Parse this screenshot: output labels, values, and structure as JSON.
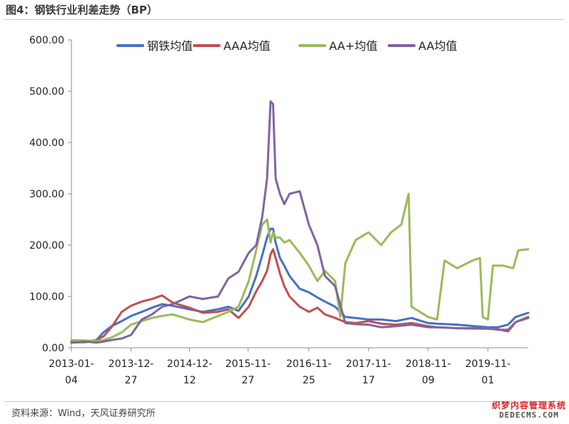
{
  "header": {
    "title": "图4：钢铁行业利差走势（BP）"
  },
  "footer": {
    "source": "资料来源：Wind，天风证券研究所"
  },
  "watermark": {
    "line1": "织梦内容管理系统",
    "line2": "DEDECMS.COM"
  },
  "chart_data": {
    "type": "line",
    "title": "",
    "xlabel": "",
    "ylabel": "",
    "ylim": [
      0,
      600
    ],
    "yticks": [
      "0.00",
      "100.00",
      "200.00",
      "300.00",
      "400.00",
      "500.00",
      "600.00"
    ],
    "xtick_labels": [
      [
        "2013-01-",
        "04"
      ],
      [
        "2013-12-",
        "27"
      ],
      [
        "2014-12-",
        "12"
      ],
      [
        "2015-11-",
        "27"
      ],
      [
        "2016-11-",
        "25"
      ],
      [
        "2017-11-",
        "17"
      ],
      [
        "2018-11-",
        "09"
      ],
      [
        "2019-11-",
        "01"
      ]
    ],
    "xtick_dates": [
      "2013-01-04",
      "2013-12-27",
      "2014-12-12",
      "2015-11-27",
      "2016-11-25",
      "2017-11-17",
      "2018-11-09",
      "2019-11-01"
    ],
    "x_range": [
      "2013-01-04",
      "2020-06-30"
    ],
    "legend_position": "top",
    "grid": false,
    "series": [
      {
        "name": "钢铁均值",
        "color": "#4472c4",
        "points": [
          [
            "2013-01-04",
            12
          ],
          [
            "2013-04-01",
            13
          ],
          [
            "2013-06-01",
            14
          ],
          [
            "2013-07-15",
            30
          ],
          [
            "2013-09-01",
            42
          ],
          [
            "2013-11-01",
            52
          ],
          [
            "2013-12-27",
            62
          ],
          [
            "2014-03-01",
            70
          ],
          [
            "2014-05-01",
            78
          ],
          [
            "2014-07-01",
            85
          ],
          [
            "2014-09-01",
            82
          ],
          [
            "2014-12-12",
            75
          ],
          [
            "2015-03-01",
            70
          ],
          [
            "2015-06-01",
            75
          ],
          [
            "2015-08-01",
            80
          ],
          [
            "2015-10-01",
            72
          ],
          [
            "2015-12-01",
            100
          ],
          [
            "2016-01-15",
            140
          ],
          [
            "2016-02-20",
            180
          ],
          [
            "2016-03-20",
            215
          ],
          [
            "2016-04-10",
            232
          ],
          [
            "2016-04-25",
            232
          ],
          [
            "2016-05-10",
            205
          ],
          [
            "2016-06-05",
            175
          ],
          [
            "2016-07-01",
            160
          ],
          [
            "2016-08-01",
            140
          ],
          [
            "2016-10-01",
            115
          ],
          [
            "2016-11-25",
            108
          ],
          [
            "2017-01-15",
            98
          ],
          [
            "2017-03-01",
            90
          ],
          [
            "2017-05-01",
            80
          ],
          [
            "2017-07-01",
            60
          ],
          [
            "2017-09-01",
            58
          ],
          [
            "2017-11-17",
            55
          ],
          [
            "2018-02-01",
            55
          ],
          [
            "2018-05-01",
            52
          ],
          [
            "2018-08-01",
            58
          ],
          [
            "2018-11-09",
            48
          ],
          [
            "2019-01-01",
            47
          ],
          [
            "2019-05-01",
            45
          ],
          [
            "2019-11-01",
            40
          ],
          [
            "2020-01-01",
            40
          ],
          [
            "2020-03-01",
            45
          ],
          [
            "2020-04-15",
            60
          ],
          [
            "2020-06-30",
            68
          ]
        ]
      },
      {
        "name": "AAA均值",
        "color": "#c0504d",
        "points": [
          [
            "2013-01-04",
            10
          ],
          [
            "2013-04-01",
            11
          ],
          [
            "2013-06-01",
            15
          ],
          [
            "2013-07-15",
            22
          ],
          [
            "2013-09-01",
            40
          ],
          [
            "2013-11-01",
            70
          ],
          [
            "2013-12-27",
            82
          ],
          [
            "2014-03-01",
            90
          ],
          [
            "2014-05-01",
            95
          ],
          [
            "2014-07-01",
            102
          ],
          [
            "2014-09-01",
            88
          ],
          [
            "2014-12-12",
            78
          ],
          [
            "2015-03-01",
            68
          ],
          [
            "2015-06-01",
            70
          ],
          [
            "2015-08-01",
            75
          ],
          [
            "2015-10-01",
            58
          ],
          [
            "2015-12-01",
            80
          ],
          [
            "2016-01-15",
            110
          ],
          [
            "2016-02-20",
            130
          ],
          [
            "2016-03-20",
            150
          ],
          [
            "2016-04-10",
            182
          ],
          [
            "2016-04-25",
            192
          ],
          [
            "2016-05-10",
            175
          ],
          [
            "2016-06-05",
            145
          ],
          [
            "2016-07-01",
            120
          ],
          [
            "2016-08-01",
            100
          ],
          [
            "2016-10-01",
            80
          ],
          [
            "2016-11-25",
            70
          ],
          [
            "2017-01-15",
            78
          ],
          [
            "2017-03-01",
            65
          ],
          [
            "2017-05-01",
            58
          ],
          [
            "2017-07-01",
            50
          ],
          [
            "2017-09-01",
            48
          ],
          [
            "2017-11-17",
            52
          ],
          [
            "2018-02-01",
            47
          ],
          [
            "2018-05-01",
            45
          ],
          [
            "2018-08-01",
            48
          ],
          [
            "2018-11-09",
            42
          ],
          [
            "2019-01-01",
            40
          ],
          [
            "2019-05-01",
            38
          ],
          [
            "2019-11-01",
            37
          ],
          [
            "2020-01-01",
            36
          ],
          [
            "2020-03-01",
            32
          ],
          [
            "2020-04-15",
            50
          ],
          [
            "2020-06-30",
            60
          ]
        ]
      },
      {
        "name": "AA+均值",
        "color": "#9bbb59",
        "points": [
          [
            "2013-01-04",
            15
          ],
          [
            "2013-04-01",
            14
          ],
          [
            "2013-06-01",
            13
          ],
          [
            "2013-07-15",
            15
          ],
          [
            "2013-09-01",
            20
          ],
          [
            "2013-11-01",
            30
          ],
          [
            "2013-12-27",
            45
          ],
          [
            "2014-03-01",
            52
          ],
          [
            "2014-05-01",
            58
          ],
          [
            "2014-07-01",
            62
          ],
          [
            "2014-09-01",
            65
          ],
          [
            "2014-12-12",
            55
          ],
          [
            "2015-03-01",
            50
          ],
          [
            "2015-06-01",
            62
          ],
          [
            "2015-08-01",
            70
          ],
          [
            "2015-10-01",
            80
          ],
          [
            "2015-12-01",
            130
          ],
          [
            "2016-01-15",
            190
          ],
          [
            "2016-02-20",
            240
          ],
          [
            "2016-03-20",
            250
          ],
          [
            "2016-04-10",
            205
          ],
          [
            "2016-04-25",
            225
          ],
          [
            "2016-05-10",
            215
          ],
          [
            "2016-06-05",
            215
          ],
          [
            "2016-07-01",
            205
          ],
          [
            "2016-08-01",
            210
          ],
          [
            "2016-10-01",
            185
          ],
          [
            "2016-11-25",
            160
          ],
          [
            "2017-01-15",
            130
          ],
          [
            "2017-03-01",
            150
          ],
          [
            "2017-05-01",
            130
          ],
          [
            "2017-06-01",
            60
          ],
          [
            "2017-07-01",
            165
          ],
          [
            "2017-09-01",
            210
          ],
          [
            "2017-11-17",
            225
          ],
          [
            "2018-02-01",
            200
          ],
          [
            "2018-04-01",
            225
          ],
          [
            "2018-06-01",
            240
          ],
          [
            "2018-07-15",
            300
          ],
          [
            "2018-08-01",
            80
          ],
          [
            "2018-11-09",
            60
          ],
          [
            "2019-01-01",
            55
          ],
          [
            "2019-02-15",
            170
          ],
          [
            "2019-05-01",
            155
          ],
          [
            "2019-08-01",
            170
          ],
          [
            "2019-09-15",
            175
          ],
          [
            "2019-10-01",
            60
          ],
          [
            "2019-11-01",
            55
          ],
          [
            "2019-12-01",
            160
          ],
          [
            "2020-02-01",
            160
          ],
          [
            "2020-04-01",
            155
          ],
          [
            "2020-05-01",
            190
          ],
          [
            "2020-06-30",
            192
          ]
        ]
      },
      {
        "name": "AA均值",
        "color": "#8064a2",
        "points": [
          [
            "2013-01-04",
            10
          ],
          [
            "2013-04-01",
            12
          ],
          [
            "2013-06-01",
            10
          ],
          [
            "2013-07-15",
            12
          ],
          [
            "2013-09-01",
            15
          ],
          [
            "2013-11-01",
            18
          ],
          [
            "2013-12-27",
            25
          ],
          [
            "2014-03-01",
            55
          ],
          [
            "2014-05-01",
            65
          ],
          [
            "2014-07-01",
            80
          ],
          [
            "2014-09-01",
            85
          ],
          [
            "2014-12-12",
            100
          ],
          [
            "2015-03-01",
            95
          ],
          [
            "2015-06-01",
            100
          ],
          [
            "2015-08-01",
            135
          ],
          [
            "2015-10-01",
            148
          ],
          [
            "2015-12-01",
            185
          ],
          [
            "2016-01-15",
            200
          ],
          [
            "2016-02-20",
            255
          ],
          [
            "2016-03-20",
            330
          ],
          [
            "2016-04-10",
            480
          ],
          [
            "2016-04-25",
            475
          ],
          [
            "2016-05-10",
            330
          ],
          [
            "2016-06-05",
            300
          ],
          [
            "2016-07-01",
            280
          ],
          [
            "2016-08-01",
            300
          ],
          [
            "2016-10-01",
            305
          ],
          [
            "2016-11-25",
            240
          ],
          [
            "2017-01-15",
            200
          ],
          [
            "2017-03-01",
            140
          ],
          [
            "2017-05-01",
            120
          ],
          [
            "2017-07-01",
            48
          ],
          [
            "2017-09-01",
            46
          ],
          [
            "2017-11-17",
            45
          ],
          [
            "2018-02-01",
            40
          ],
          [
            "2018-05-01",
            42
          ],
          [
            "2018-08-01",
            45
          ],
          [
            "2018-11-09",
            40
          ],
          [
            "2019-01-01",
            40
          ],
          [
            "2019-05-01",
            38
          ],
          [
            "2019-11-01",
            38
          ],
          [
            "2020-01-01",
            35
          ],
          [
            "2020-03-01",
            35
          ],
          [
            "2020-04-15",
            50
          ],
          [
            "2020-06-30",
            58
          ]
        ]
      }
    ]
  }
}
